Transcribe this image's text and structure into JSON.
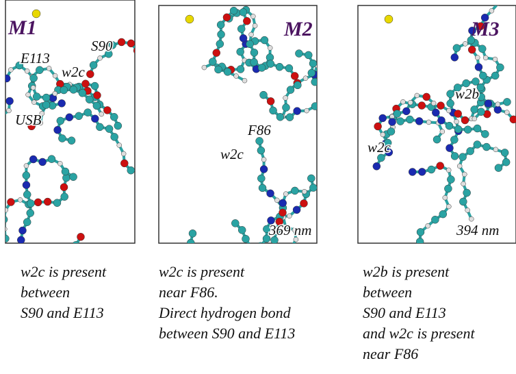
{
  "panels": [
    {
      "title": "M1",
      "labels": [
        "E113",
        "S90",
        "w2c",
        "USB"
      ],
      "caption": [
        "w2c is present",
        "between",
        "S90 and E113"
      ]
    },
    {
      "title": "M2",
      "labels": [
        "F86",
        "w2c",
        "369 nm"
      ],
      "caption": [
        "w2c is present",
        "near F86.",
        "Direct hydrogen bond",
        "between S90 and E113"
      ]
    },
    {
      "title": "M3",
      "labels": [
        "w2b",
        "w2c",
        "394 nm"
      ],
      "caption": [
        "w2b is present",
        "between",
        "S90 and E113",
        "and w2c is present",
        "near F86"
      ]
    }
  ]
}
